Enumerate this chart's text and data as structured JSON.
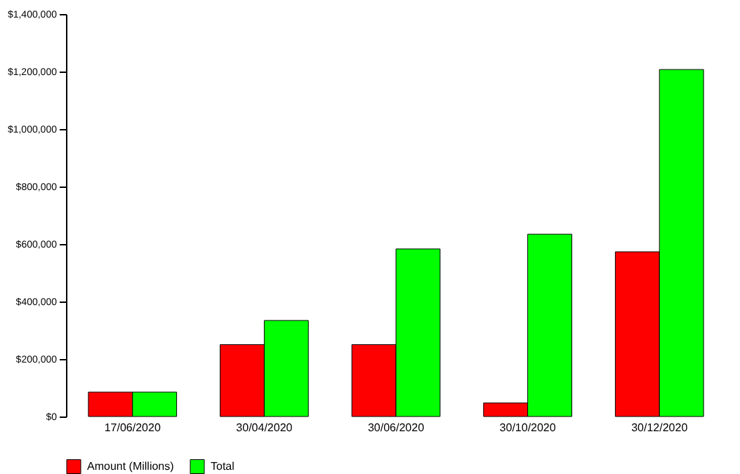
{
  "chart_data": {
    "type": "bar",
    "categories": [
      "17/06/2020",
      "30/04/2020",
      "30/06/2020",
      "30/10/2020",
      "30/12/2020"
    ],
    "series": [
      {
        "name": "Amount (Millions)",
        "color": "#ff0000",
        "values": [
          85000,
          250000,
          250000,
          47000,
          573000
        ]
      },
      {
        "name": "Total",
        "color": "#00ff00",
        "values": [
          85000,
          334000,
          583000,
          634000,
          1207000
        ]
      }
    ],
    "ylim": [
      0,
      1400000
    ],
    "yticks": [
      {
        "value": 0,
        "label": "$0"
      },
      {
        "value": 200000,
        "label": "$200,000"
      },
      {
        "value": 400000,
        "label": "$400,000"
      },
      {
        "value": 600000,
        "label": "$600,000"
      },
      {
        "value": 800000,
        "label": "$800,000"
      },
      {
        "value": 1000000,
        "label": "$1,000,000"
      },
      {
        "value": 1200000,
        "label": "$1,200,000"
      },
      {
        "value": 1400000,
        "label": "$1,400,000"
      }
    ],
    "grid": false,
    "legend": "bottom"
  }
}
